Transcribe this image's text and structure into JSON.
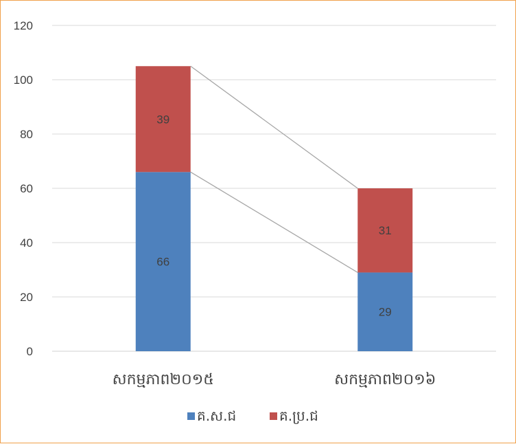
{
  "chart_data": {
    "type": "bar",
    "stacked": true,
    "categories": [
      "សកម្មភាព២០១៥",
      "សកម្មភាព២០១៦"
    ],
    "series": [
      {
        "name": "គ.ស.ជ",
        "values": [
          66,
          29
        ],
        "color": "#4e81bd"
      },
      {
        "name": "គ.ប្រ.ជ",
        "values": [
          39,
          31
        ],
        "color": "#c0504d"
      }
    ],
    "ylim": [
      0,
      120
    ],
    "yticks": [
      0,
      20,
      40,
      60,
      80,
      100,
      120
    ],
    "grid": true,
    "series_lines": true,
    "legend_position": "bottom",
    "title": "",
    "xlabel": "",
    "ylabel": ""
  }
}
